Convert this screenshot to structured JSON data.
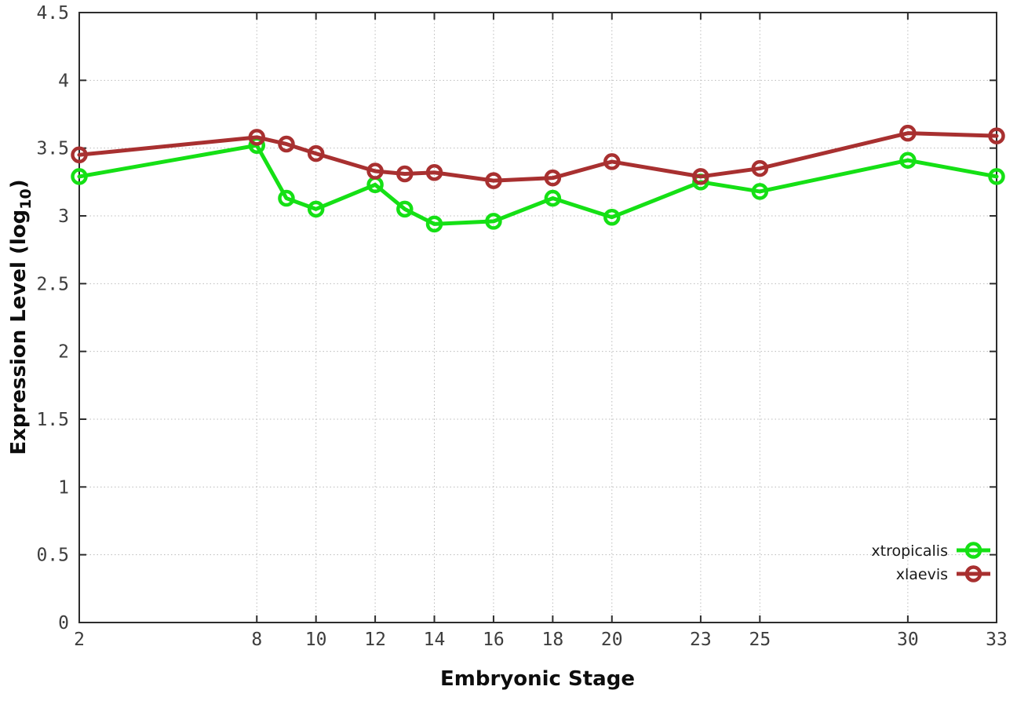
{
  "figure": {
    "background": "#ffffff",
    "border_color": "#2d2d2d",
    "grid_color": "#bbbbbb",
    "tick_label_color": "#3d3d3d"
  },
  "chart_data": {
    "type": "line",
    "title": "",
    "xlabel": "Embryonic Stage",
    "ylabel": "Expression Level (log10)",
    "ylabel_parts": {
      "pre": "Expression Level (log",
      "sub": "10",
      "post": ")"
    },
    "xlim": [
      2,
      33
    ],
    "ylim": [
      0,
      4.5
    ],
    "grid": true,
    "legend_position": "bottom-right",
    "x": [
      2,
      8,
      9,
      10,
      12,
      13,
      14,
      16,
      18,
      20,
      23,
      25,
      30,
      33
    ],
    "x_ticks": [
      2,
      8,
      10,
      12,
      14,
      16,
      18,
      20,
      23,
      25,
      30,
      33
    ],
    "x_tick_labels": [
      "2",
      "8",
      "10",
      "12",
      "14",
      "16",
      "18",
      "20",
      "23",
      "25",
      "30",
      "33"
    ],
    "y_ticks": [
      0,
      0.5,
      1,
      1.5,
      2,
      2.5,
      3,
      3.5,
      4,
      4.5
    ],
    "y_tick_labels": [
      "0",
      "0.5",
      "1",
      "1.5",
      "2",
      "2.5",
      "3",
      "3.5",
      "4",
      "4.5"
    ],
    "series": [
      {
        "name": "xtropicalis",
        "color": "#15e015",
        "marker": "open-circle",
        "values": [
          3.29,
          3.52,
          3.13,
          3.05,
          3.23,
          3.05,
          2.94,
          2.96,
          3.13,
          2.99,
          3.25,
          3.18,
          3.41,
          3.29
        ]
      },
      {
        "name": "xlaevis",
        "color": "#a83030",
        "marker": "open-circle",
        "values": [
          3.45,
          3.58,
          3.53,
          3.46,
          3.33,
          3.31,
          3.32,
          3.26,
          3.28,
          3.4,
          3.29,
          3.35,
          3.61,
          3.59
        ]
      }
    ]
  }
}
